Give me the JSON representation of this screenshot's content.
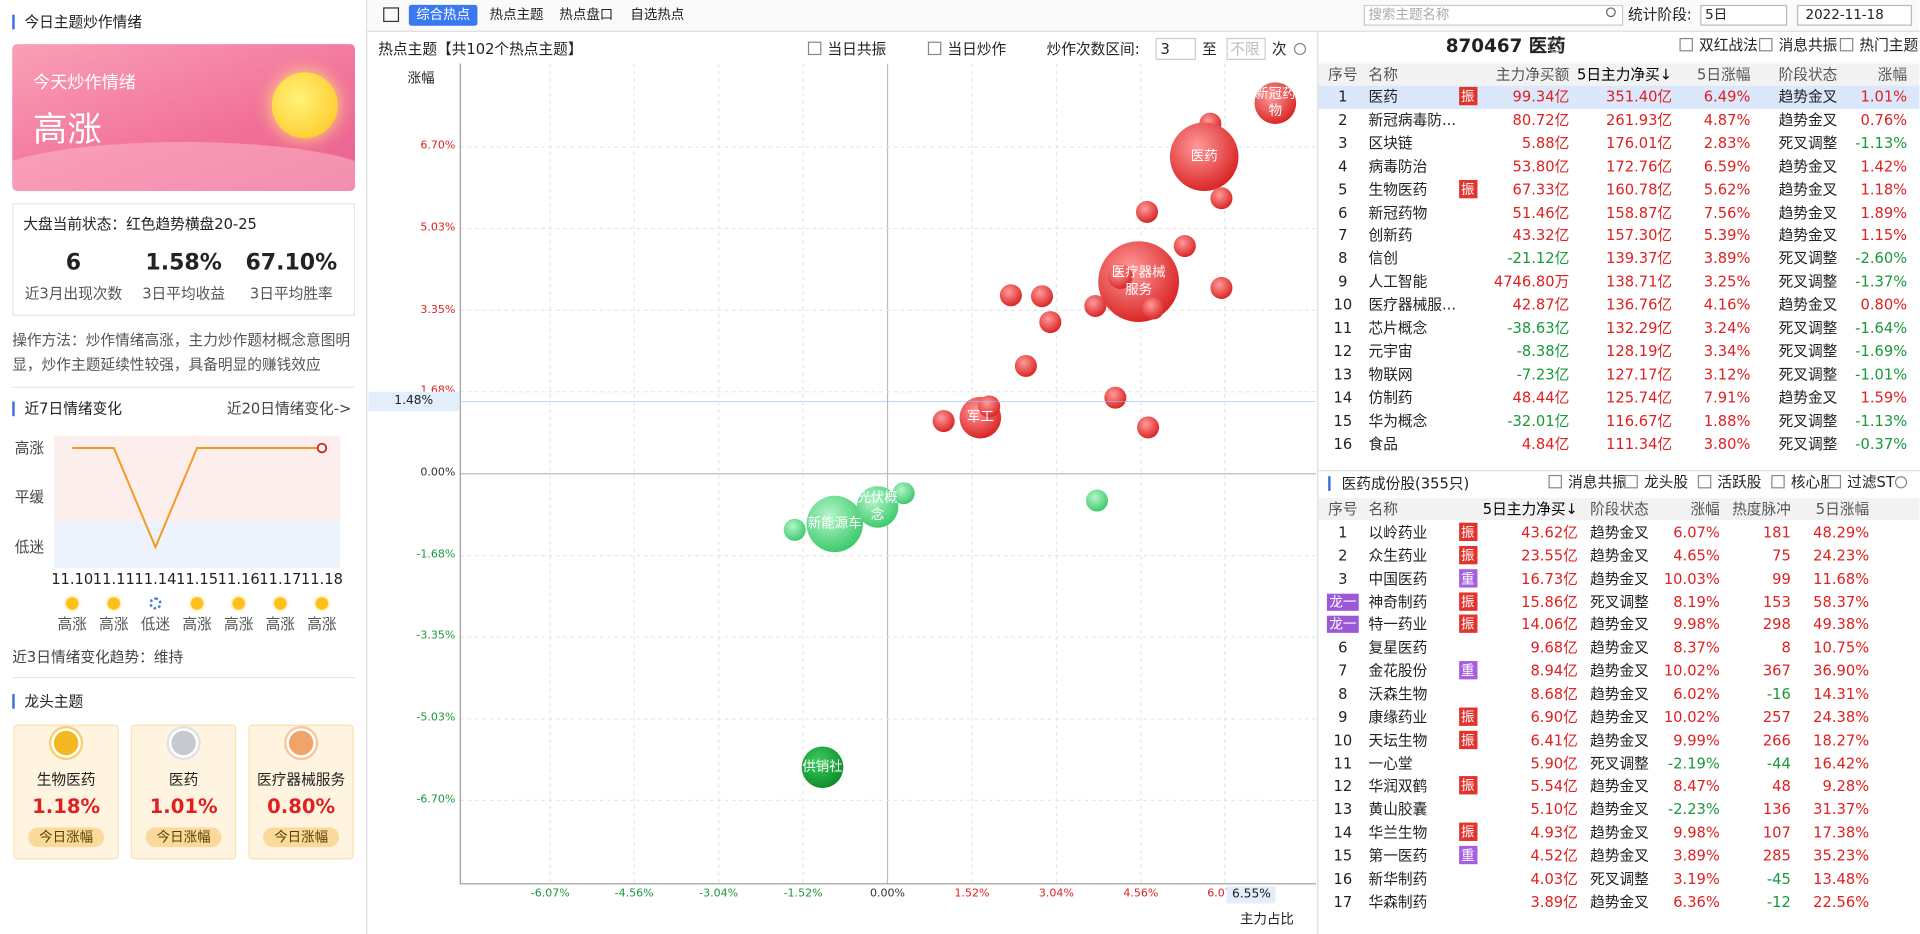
{
  "left": {
    "title": "今日主题炒作情绪",
    "banner_sub": "今天炒作情绪",
    "banner_main": "高涨",
    "status": "大盘当前状态：红色趋势横盘20-25",
    "stats": [
      {
        "value": "6",
        "label": "近3月出现次数"
      },
      {
        "value": "1.58%",
        "label": "3日平均收益"
      },
      {
        "value": "67.10%",
        "label": "3日平均胜率"
      }
    ],
    "method": "操作方法：炒作情绪高涨，主力炒作题材概念意图明显，炒作主题延续性较强，具备明显的赚钱效应",
    "week_title": "近7日情绪变化",
    "week_link": "近20日情绪变化->",
    "levels": [
      "高涨",
      "平缓",
      "低迷"
    ],
    "days": [
      {
        "date": "11.10",
        "mood": "高涨"
      },
      {
        "date": "11.11",
        "mood": "高涨"
      },
      {
        "date": "11.14",
        "mood": "低迷"
      },
      {
        "date": "11.15",
        "mood": "高涨"
      },
      {
        "date": "11.16",
        "mood": "高涨"
      },
      {
        "date": "11.17",
        "mood": "高涨"
      },
      {
        "date": "11.18",
        "mood": "高涨"
      }
    ],
    "trend": "近3日情绪变化趋势：维持",
    "dragon_title": "龙头主题",
    "dragons": [
      {
        "name": "生物医药",
        "change": "1.18%",
        "button": "今日涨幅"
      },
      {
        "name": "医药",
        "change": "1.01%",
        "button": "今日涨幅"
      },
      {
        "name": "医疗器械服务",
        "change": "0.80%",
        "button": "今日涨幅"
      }
    ]
  },
  "toolbar": {
    "tabs": [
      "综合热点",
      "热点主题",
      "热点盘口",
      "自选热点"
    ],
    "search": "搜索主题名称",
    "period_label": "统计阶段:",
    "period": "5日",
    "date": "2022-11-18"
  },
  "hot_map": {
    "type": "bubble",
    "title": "热点主题【共102个热点主题】",
    "filters": [
      "当日共振",
      "当日炒作"
    ],
    "range_label": "炒作次数区间:",
    "range_from": "3",
    "range_to_label": "至",
    "range_to": "不限",
    "range_unit": "次",
    "y_label": "涨幅",
    "x_label": "主力占比",
    "xlim": [
      -7.69,
      7.71
    ],
    "ylim": [
      -8.41,
      8.41
    ],
    "xticks": [
      {
        "value": -6.07,
        "label": "-6.07%"
      },
      {
        "value": -4.56,
        "label": "-4.56%"
      },
      {
        "value": -3.04,
        "label": "-3.04%"
      },
      {
        "value": -1.52,
        "label": "-1.52%"
      },
      {
        "value": 0,
        "label": "0.00%"
      },
      {
        "value": 1.52,
        "label": "1.52%"
      },
      {
        "value": 3.04,
        "label": "3.04%"
      },
      {
        "value": 4.56,
        "label": "4.56%"
      },
      {
        "value": 6.07,
        "label": "6.07%"
      }
    ],
    "yticks": [
      {
        "value": 6.7,
        "label": "6.70%"
      },
      {
        "value": 5.03,
        "label": "5.03%"
      },
      {
        "value": 3.35,
        "label": "3.35%"
      },
      {
        "value": 1.68,
        "label": "1.68%"
      },
      {
        "value": 0,
        "label": "0.00%"
      },
      {
        "value": -1.68,
        "label": "-1.68%"
      },
      {
        "value": -3.35,
        "label": "-3.35%"
      },
      {
        "value": -5.03,
        "label": "-5.03%"
      },
      {
        "value": -6.7,
        "label": "-6.70%"
      }
    ],
    "y_marker": {
      "value": 1.48,
      "label": "1.48%"
    },
    "x_marker": {
      "value": 6.55,
      "label": "6.55%"
    },
    "points": [
      {
        "x": 6.98,
        "y": 7.6,
        "size": 17,
        "label": "新冠药物"
      },
      {
        "x": 5.81,
        "y": 7.18,
        "size": 9
      },
      {
        "x": 5.7,
        "y": 6.5,
        "size": 28,
        "label": "医药"
      },
      {
        "x": 6.01,
        "y": 5.65,
        "size": 9
      },
      {
        "x": 4.67,
        "y": 5.37,
        "size": 9
      },
      {
        "x": 5.35,
        "y": 4.67,
        "size": 9
      },
      {
        "x": 4.52,
        "y": 3.94,
        "size": 33,
        "label": "医疗器械服务"
      },
      {
        "x": 4.19,
        "y": 4.04,
        "size": 10
      },
      {
        "x": 4.78,
        "y": 3.39,
        "size": 9
      },
      {
        "x": 6.01,
        "y": 3.81,
        "size": 9
      },
      {
        "x": 2.22,
        "y": 3.66,
        "size": 9
      },
      {
        "x": 2.78,
        "y": 3.64,
        "size": 9
      },
      {
        "x": 2.93,
        "y": 3.11,
        "size": 9
      },
      {
        "x": 3.74,
        "y": 3.44,
        "size": 9
      },
      {
        "x": 2.49,
        "y": 2.21,
        "size": 9
      },
      {
        "x": 4.1,
        "y": 1.56,
        "size": 9
      },
      {
        "x": 4.69,
        "y": 0.95,
        "size": 9
      },
      {
        "x": 1.67,
        "y": 1.15,
        "size": 17,
        "label": "军工"
      },
      {
        "x": 1.83,
        "y": 1.38,
        "size": 9
      },
      {
        "x": 1.01,
        "y": 1.08,
        "size": 9
      },
      {
        "x": 3.77,
        "y": -0.55,
        "size": 9
      },
      {
        "x": -0.95,
        "y": -1.03,
        "size": 23,
        "label": "新能源车"
      },
      {
        "x": -1.67,
        "y": -1.15,
        "size": 9
      },
      {
        "x": -0.18,
        "y": -0.68,
        "size": 17,
        "label": "光伏概念"
      },
      {
        "x": 0.29,
        "y": -0.4,
        "size": 9
      },
      {
        "x": -1.17,
        "y": -6.02,
        "size": 17,
        "label": "供销社"
      }
    ]
  },
  "theme": {
    "title": "870467 医药",
    "options": [
      "双红战法",
      "消息共振",
      "热门主题"
    ],
    "columns": [
      "序号",
      "名称",
      "主力净买额",
      "5日主力净买↓",
      "5日涨幅",
      "阶段状态",
      "涨幅"
    ],
    "rows": [
      {
        "no": 1,
        "name": "医药",
        "tag": "振",
        "net": "99.34亿",
        "net5": "351.40亿",
        "chg5": "6.49%",
        "state": "趋势金叉",
        "chg": "1.01%"
      },
      {
        "no": 2,
        "name": "新冠病毒防...",
        "net": "80.72亿",
        "net5": "261.93亿",
        "chg5": "4.87%",
        "state": "趋势金叉",
        "chg": "0.76%"
      },
      {
        "no": 3,
        "name": "区块链",
        "net": "5.88亿",
        "net5": "176.01亿",
        "chg5": "2.83%",
        "state": "死叉调整",
        "chg": "-1.13%"
      },
      {
        "no": 4,
        "name": "病毒防治",
        "net": "53.80亿",
        "net5": "172.76亿",
        "chg5": "6.59%",
        "state": "趋势金叉",
        "chg": "1.42%"
      },
      {
        "no": 5,
        "name": "生物医药",
        "tag": "振",
        "net": "67.33亿",
        "net5": "160.78亿",
        "chg5": "5.62%",
        "state": "趋势金叉",
        "chg": "1.18%"
      },
      {
        "no": 6,
        "name": "新冠药物",
        "net": "51.46亿",
        "net5": "158.87亿",
        "chg5": "7.56%",
        "state": "趋势金叉",
        "chg": "1.89%"
      },
      {
        "no": 7,
        "name": "创新药",
        "net": "43.32亿",
        "net5": "157.30亿",
        "chg5": "5.39%",
        "state": "趋势金叉",
        "chg": "1.15%"
      },
      {
        "no": 8,
        "name": "信创",
        "net": "-21.12亿",
        "net5": "139.37亿",
        "chg5": "3.89%",
        "state": "死叉调整",
        "chg": "-2.60%"
      },
      {
        "no": 9,
        "name": "人工智能",
        "net": "4746.80万",
        "net5": "138.71亿",
        "chg5": "3.25%",
        "state": "死叉调整",
        "chg": "-1.37%"
      },
      {
        "no": 10,
        "name": "医疗器械服...",
        "net": "42.87亿",
        "net5": "136.76亿",
        "chg5": "4.16%",
        "state": "趋势金叉",
        "chg": "0.80%"
      },
      {
        "no": 11,
        "name": "芯片概念",
        "net": "-38.63亿",
        "net5": "132.29亿",
        "chg5": "3.24%",
        "state": "死叉调整",
        "chg": "-1.64%"
      },
      {
        "no": 12,
        "name": "元宇宙",
        "net": "-8.38亿",
        "net5": "128.19亿",
        "chg5": "3.34%",
        "state": "死叉调整",
        "chg": "-1.69%"
      },
      {
        "no": 13,
        "name": "物联网",
        "net": "-7.23亿",
        "net5": "127.17亿",
        "chg5": "3.12%",
        "state": "死叉调整",
        "chg": "-1.01%"
      },
      {
        "no": 14,
        "name": "仿制药",
        "net": "48.44亿",
        "net5": "125.74亿",
        "chg5": "7.91%",
        "state": "趋势金叉",
        "chg": "1.59%"
      },
      {
        "no": 15,
        "name": "华为概念",
        "net": "-32.01亿",
        "net5": "116.67亿",
        "chg5": "1.88%",
        "state": "死叉调整",
        "chg": "-1.13%"
      },
      {
        "no": 16,
        "name": "食品",
        "net": "4.84亿",
        "net5": "111.34亿",
        "chg5": "3.80%",
        "state": "死叉调整",
        "chg": "-0.37%"
      }
    ]
  },
  "stocks": {
    "title": "医药成份股(355只)",
    "options": [
      "消息共振",
      "龙头股",
      "活跃股",
      "核心股",
      "过滤ST"
    ],
    "columns": [
      "序号",
      "名称",
      "5日主力净买↓",
      "阶段状态",
      "涨幅",
      "热度脉冲",
      "5日涨幅"
    ],
    "rows": [
      {
        "no": 1,
        "name": "以岭药业",
        "tag": "振",
        "net5": "43.62亿",
        "state": "趋势金叉",
        "chg": "6.07%",
        "heat": 181,
        "chg5": "48.29%"
      },
      {
        "no": 2,
        "name": "众生药业",
        "tag": "振",
        "net5": "23.55亿",
        "state": "趋势金叉",
        "chg": "4.65%",
        "heat": 75,
        "chg5": "24.23%"
      },
      {
        "no": 3,
        "name": "中国医药",
        "tag": "重",
        "net5": "16.73亿",
        "state": "趋势金叉",
        "chg": "10.03%",
        "heat": 99,
        "chg5": "11.68%"
      },
      {
        "no": 4,
        "lead": "龙一",
        "name": "神奇制药",
        "tag": "振",
        "net5": "15.86亿",
        "state": "死叉调整",
        "chg": "8.19%",
        "heat": 153,
        "chg5": "58.37%"
      },
      {
        "no": 5,
        "lead": "龙一",
        "name": "特一药业",
        "tag": "振",
        "net5": "14.06亿",
        "state": "趋势金叉",
        "chg": "9.98%",
        "heat": 298,
        "chg5": "49.38%"
      },
      {
        "no": 6,
        "name": "复星医药",
        "net5": "9.68亿",
        "state": "趋势金叉",
        "chg": "8.37%",
        "heat": 8,
        "chg5": "10.75%"
      },
      {
        "no": 7,
        "name": "金花股份",
        "tag": "重",
        "net5": "8.94亿",
        "state": "趋势金叉",
        "chg": "10.02%",
        "heat": 367,
        "chg5": "36.90%"
      },
      {
        "no": 8,
        "name": "沃森生物",
        "net5": "8.68亿",
        "state": "趋势金叉",
        "chg": "6.02%",
        "heat": -16,
        "chg5": "14.31%"
      },
      {
        "no": 9,
        "name": "康缘药业",
        "tag": "振",
        "net5": "6.90亿",
        "state": "趋势金叉",
        "chg": "10.02%",
        "heat": 257,
        "chg5": "24.38%"
      },
      {
        "no": 10,
        "name": "天坛生物",
        "tag": "振",
        "net5": "6.41亿",
        "state": "趋势金叉",
        "chg": "9.99%",
        "heat": 266,
        "chg5": "18.27%"
      },
      {
        "no": 11,
        "name": "一心堂",
        "net5": "5.90亿",
        "state": "死叉调整",
        "chg": "-2.19%",
        "heat": -44,
        "chg5": "16.42%"
      },
      {
        "no": 12,
        "name": "华润双鹤",
        "tag": "振",
        "net5": "5.54亿",
        "state": "趋势金叉",
        "chg": "8.47%",
        "heat": 48,
        "chg5": "9.28%"
      },
      {
        "no": 13,
        "name": "黄山胶囊",
        "net5": "5.10亿",
        "state": "趋势金叉",
        "chg": "-2.23%",
        "heat": 136,
        "chg5": "31.37%"
      },
      {
        "no": 14,
        "name": "华兰生物",
        "tag": "振",
        "net5": "4.93亿",
        "state": "趋势金叉",
        "chg": "9.98%",
        "heat": 107,
        "chg5": "17.38%"
      },
      {
        "no": 15,
        "name": "第一医药",
        "tag": "重",
        "net5": "4.52亿",
        "state": "趋势金叉",
        "chg": "3.89%",
        "heat": 285,
        "chg5": "35.23%"
      },
      {
        "no": 16,
        "name": "新华制药",
        "net5": "4.03亿",
        "state": "死叉调整",
        "chg": "3.19%",
        "heat": -45,
        "chg5": "13.48%"
      },
      {
        "no": 17,
        "name": "华森制药",
        "net5": "3.89亿",
        "state": "趋势金叉",
        "chg": "6.36%",
        "heat": -12,
        "chg5": "22.56%"
      }
    ]
  }
}
